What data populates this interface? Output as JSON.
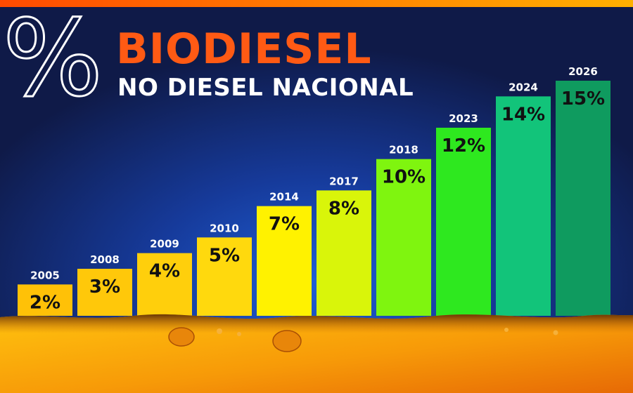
{
  "header": {
    "symbol": "%",
    "title": "BIODIESEL",
    "subtitle": "NO DIESEL NACIONAL"
  },
  "colors": {
    "background": "#0f1a48",
    "title": "#ff5a14",
    "subtitle": "#ffffff",
    "top_stripe": "#ff6a00",
    "oil": "#f7a10a"
  },
  "chart_data": {
    "type": "bar",
    "title": "BIODIESEL NO DIESEL NACIONAL",
    "categories": [
      "2005",
      "2008",
      "2009",
      "2010",
      "2014",
      "2017",
      "2018",
      "2023",
      "2024",
      "2026"
    ],
    "values": [
      2,
      3,
      4,
      5,
      7,
      8,
      10,
      12,
      14,
      15
    ],
    "value_labels": [
      "2%",
      "3%",
      "4%",
      "5%",
      "7%",
      "8%",
      "10%",
      "12%",
      "14%",
      "15%"
    ],
    "bar_colors": [
      "#ffc107",
      "#ffc80a",
      "#ffcf0c",
      "#ffd90d",
      "#fff200",
      "#d9f50a",
      "#7ff50f",
      "#2ee81f",
      "#12c47a",
      "#0f9b5f"
    ],
    "ylim": [
      0,
      15
    ],
    "xlabel": "",
    "ylabel": "",
    "grid": false,
    "legend": "none"
  }
}
